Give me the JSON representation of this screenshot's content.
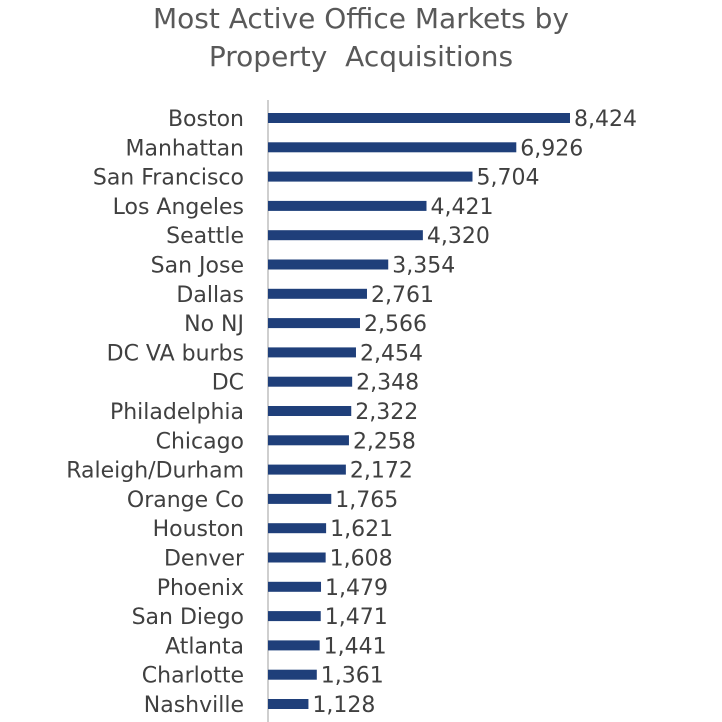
{
  "chart_data": {
    "type": "bar",
    "orientation": "horizontal",
    "title_lines": [
      "Most Active Office Markets by",
      "Property  Acquisitions"
    ],
    "categories": [
      "Boston",
      "Manhattan",
      "San Francisco",
      "Los Angeles",
      "Seattle",
      "San Jose",
      "Dallas",
      "No NJ",
      "DC VA burbs",
      "DC",
      "Philadelphia",
      "Chicago",
      "Raleigh/Durham",
      "Orange Co",
      "Houston",
      "Denver",
      "Phoenix",
      "San Diego",
      "Atlanta",
      "Charlotte",
      "Nashville"
    ],
    "values": [
      8424,
      6926,
      5704,
      4421,
      4320,
      3354,
      2761,
      2566,
      2454,
      2348,
      2322,
      2258,
      2172,
      1765,
      1621,
      1608,
      1479,
      1471,
      1441,
      1361,
      1128
    ],
    "value_labels": [
      "8,424",
      "6,926",
      "5,704",
      "4,421",
      "4,320",
      "3,354",
      "2,761",
      "2,566",
      "2,454",
      "2,348",
      "2,322",
      "2,258",
      "2,172",
      "1,765",
      "1,621",
      "1,608",
      "1,479",
      "1,471",
      "1,441",
      "1,361",
      "1,128"
    ],
    "xlim": [
      0,
      8424
    ],
    "bar_color": "#1f3f7a",
    "axis_color": "#bfbfbf",
    "grid": false,
    "legend": "none"
  }
}
